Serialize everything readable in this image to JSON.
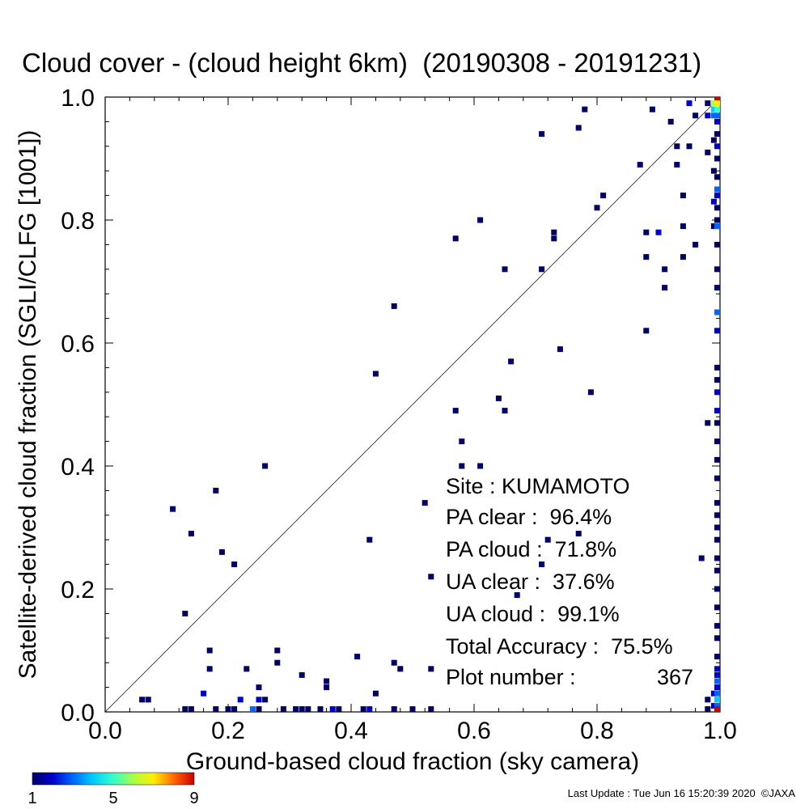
{
  "chart_data": {
    "type": "heatmap",
    "title": "Cloud cover - (cloud height 6km)  (20190308 - 20191231)",
    "xlabel": "Ground-based cloud fraction (sky camera)",
    "ylabel": "Satellite-derived cloud fraction (SGLI/CLFG [1001])",
    "xlim": [
      0.0,
      1.0
    ],
    "ylim": [
      0.0,
      1.0
    ],
    "x_ticks": [
      "0.0",
      "0.2",
      "0.4",
      "0.6",
      "0.8",
      "1.0"
    ],
    "y_ticks": [
      "0.0",
      "0.2",
      "0.4",
      "0.6",
      "0.8",
      "1.0"
    ],
    "reference_line": "y = x",
    "colorbar": {
      "min": 1,
      "max": 9,
      "tick_labels": [
        "1",
        "5",
        "9"
      ],
      "colors": [
        "#000066",
        "#0000cc",
        "#0066ff",
        "#00ccff",
        "#33ffcc",
        "#aaff44",
        "#ffee00",
        "#ff6600",
        "#cc0000"
      ]
    },
    "stats": {
      "site": "Site : KUMAMOTO",
      "pa_clear": "PA clear :  96.4%",
      "pa_cloud": "PA cloud :  71.8%",
      "ua_clear": "UA clear :  37.6%",
      "ua_cloud": "UA cloud :  99.1%",
      "total_accuracy": "Total Accuracy :  75.5%",
      "plot_number_label": "Plot number :",
      "plot_number_value": "367"
    },
    "points": [
      {
        "x": 0.06,
        "y": 0.02,
        "c": 1
      },
      {
        "x": 0.07,
        "y": 0.02,
        "c": 1
      },
      {
        "x": 0.13,
        "y": 0.0,
        "c": 1
      },
      {
        "x": 0.14,
        "y": 0.0,
        "c": 1
      },
      {
        "x": 0.16,
        "y": 0.03,
        "c": 2
      },
      {
        "x": 0.18,
        "y": 0.0,
        "c": 1
      },
      {
        "x": 0.2,
        "y": 0.0,
        "c": 1
      },
      {
        "x": 0.21,
        "y": 0.0,
        "c": 1
      },
      {
        "x": 0.22,
        "y": 0.02,
        "c": 2
      },
      {
        "x": 0.24,
        "y": 0.0,
        "c": 3
      },
      {
        "x": 0.25,
        "y": 0.0,
        "c": 1
      },
      {
        "x": 0.25,
        "y": 0.02,
        "c": 2
      },
      {
        "x": 0.26,
        "y": 0.02,
        "c": 1
      },
      {
        "x": 0.29,
        "y": 0.0,
        "c": 1
      },
      {
        "x": 0.31,
        "y": 0.0,
        "c": 1
      },
      {
        "x": 0.32,
        "y": 0.0,
        "c": 1
      },
      {
        "x": 0.33,
        "y": 0.0,
        "c": 1
      },
      {
        "x": 0.35,
        "y": 0.0,
        "c": 1
      },
      {
        "x": 0.37,
        "y": 0.0,
        "c": 2
      },
      {
        "x": 0.38,
        "y": 0.0,
        "c": 1
      },
      {
        "x": 0.42,
        "y": 0.0,
        "c": 1
      },
      {
        "x": 0.43,
        "y": 0.0,
        "c": 2
      },
      {
        "x": 0.47,
        "y": 0.0,
        "c": 1
      },
      {
        "x": 0.5,
        "y": 0.0,
        "c": 1
      },
      {
        "x": 0.53,
        "y": 0.0,
        "c": 1
      },
      {
        "x": 0.11,
        "y": 0.33,
        "c": 1
      },
      {
        "x": 0.14,
        "y": 0.29,
        "c": 1
      },
      {
        "x": 0.18,
        "y": 0.36,
        "c": 1
      },
      {
        "x": 0.19,
        "y": 0.26,
        "c": 1
      },
      {
        "x": 0.21,
        "y": 0.24,
        "c": 1
      },
      {
        "x": 0.13,
        "y": 0.16,
        "c": 1
      },
      {
        "x": 0.17,
        "y": 0.1,
        "c": 1
      },
      {
        "x": 0.17,
        "y": 0.07,
        "c": 1
      },
      {
        "x": 0.23,
        "y": 0.07,
        "c": 1
      },
      {
        "x": 0.25,
        "y": 0.04,
        "c": 1
      },
      {
        "x": 0.28,
        "y": 0.1,
        "c": 1
      },
      {
        "x": 0.28,
        "y": 0.08,
        "c": 1
      },
      {
        "x": 0.26,
        "y": 0.4,
        "c": 1
      },
      {
        "x": 0.32,
        "y": 0.06,
        "c": 1
      },
      {
        "x": 0.36,
        "y": 0.05,
        "c": 1
      },
      {
        "x": 0.36,
        "y": 0.04,
        "c": 1
      },
      {
        "x": 0.41,
        "y": 0.09,
        "c": 1
      },
      {
        "x": 0.43,
        "y": 0.28,
        "c": 1
      },
      {
        "x": 0.44,
        "y": 0.03,
        "c": 1
      },
      {
        "x": 0.44,
        "y": 0.55,
        "c": 1
      },
      {
        "x": 0.47,
        "y": 0.66,
        "c": 1
      },
      {
        "x": 0.47,
        "y": 0.08,
        "c": 1
      },
      {
        "x": 0.48,
        "y": 0.07,
        "c": 1
      },
      {
        "x": 0.52,
        "y": 0.34,
        "c": 1
      },
      {
        "x": 0.53,
        "y": 0.22,
        "c": 1
      },
      {
        "x": 0.53,
        "y": 0.07,
        "c": 1
      },
      {
        "x": 0.57,
        "y": 0.77,
        "c": 1
      },
      {
        "x": 0.57,
        "y": 0.49,
        "c": 1
      },
      {
        "x": 0.58,
        "y": 0.44,
        "c": 1
      },
      {
        "x": 0.58,
        "y": 0.4,
        "c": 1
      },
      {
        "x": 0.61,
        "y": 0.4,
        "c": 1
      },
      {
        "x": 0.61,
        "y": 0.8,
        "c": 1
      },
      {
        "x": 0.64,
        "y": 0.51,
        "c": 1
      },
      {
        "x": 0.65,
        "y": 0.49,
        "c": 1
      },
      {
        "x": 0.65,
        "y": 0.72,
        "c": 1
      },
      {
        "x": 0.66,
        "y": 0.57,
        "c": 1
      },
      {
        "x": 0.67,
        "y": 0.19,
        "c": 1
      },
      {
        "x": 0.71,
        "y": 0.94,
        "c": 1
      },
      {
        "x": 0.71,
        "y": 0.72,
        "c": 1
      },
      {
        "x": 0.71,
        "y": 0.24,
        "c": 1
      },
      {
        "x": 0.72,
        "y": 0.28,
        "c": 1
      },
      {
        "x": 0.73,
        "y": 0.78,
        "c": 1
      },
      {
        "x": 0.73,
        "y": 0.77,
        "c": 1
      },
      {
        "x": 0.74,
        "y": 0.59,
        "c": 1
      },
      {
        "x": 0.77,
        "y": 0.95,
        "c": 1
      },
      {
        "x": 0.77,
        "y": 0.29,
        "c": 1
      },
      {
        "x": 0.78,
        "y": 0.98,
        "c": 1
      },
      {
        "x": 0.79,
        "y": 0.52,
        "c": 1
      },
      {
        "x": 0.8,
        "y": 0.82,
        "c": 1
      },
      {
        "x": 0.81,
        "y": 0.84,
        "c": 1
      },
      {
        "x": 0.87,
        "y": 0.89,
        "c": 1
      },
      {
        "x": 0.88,
        "y": 0.78,
        "c": 1
      },
      {
        "x": 0.88,
        "y": 0.74,
        "c": 1
      },
      {
        "x": 0.88,
        "y": 0.62,
        "c": 1
      },
      {
        "x": 0.89,
        "y": 0.98,
        "c": 1
      },
      {
        "x": 0.9,
        "y": 0.78,
        "c": 2
      },
      {
        "x": 0.91,
        "y": 0.72,
        "c": 1
      },
      {
        "x": 0.91,
        "y": 0.69,
        "c": 1
      },
      {
        "x": 0.92,
        "y": 0.96,
        "c": 1
      },
      {
        "x": 0.93,
        "y": 0.92,
        "c": 1
      },
      {
        "x": 0.93,
        "y": 0.89,
        "c": 1
      },
      {
        "x": 0.94,
        "y": 0.84,
        "c": 1
      },
      {
        "x": 0.94,
        "y": 0.79,
        "c": 1
      },
      {
        "x": 0.94,
        "y": 0.74,
        "c": 1
      },
      {
        "x": 0.95,
        "y": 0.92,
        "c": 1
      },
      {
        "x": 0.95,
        "y": 0.99,
        "c": 2
      },
      {
        "x": 0.96,
        "y": 0.76,
        "c": 1
      },
      {
        "x": 0.96,
        "y": 0.97,
        "c": 1
      },
      {
        "x": 0.97,
        "y": 0.25,
        "c": 1
      },
      {
        "x": 0.98,
        "y": 0.47,
        "c": 1
      },
      {
        "x": 0.98,
        "y": 0.99,
        "c": 1
      },
      {
        "x": 0.98,
        "y": 0.97,
        "c": 2
      },
      {
        "x": 0.98,
        "y": 0.91,
        "c": 1
      },
      {
        "x": 0.98,
        "y": 0.0,
        "c": 1
      },
      {
        "x": 0.98,
        "y": 0.02,
        "c": 1
      },
      {
        "x": 0.99,
        "y": 0.99,
        "c": 6
      },
      {
        "x": 0.99,
        "y": 0.98,
        "c": 4
      },
      {
        "x": 0.99,
        "y": 0.97,
        "c": 3
      },
      {
        "x": 0.99,
        "y": 0.93,
        "c": 1
      },
      {
        "x": 0.99,
        "y": 0.88,
        "c": 1
      },
      {
        "x": 0.99,
        "y": 0.83,
        "c": 2
      },
      {
        "x": 0.99,
        "y": 0.79,
        "c": 1
      },
      {
        "x": 0.99,
        "y": 0.03,
        "c": 2
      },
      {
        "x": 0.99,
        "y": 0.01,
        "c": 2
      },
      {
        "x": 1.0,
        "y": 1.0,
        "c": 9
      },
      {
        "x": 1.0,
        "y": 0.99,
        "c": 7
      },
      {
        "x": 1.0,
        "y": 0.98,
        "c": 5
      },
      {
        "x": 1.0,
        "y": 0.97,
        "c": 3
      },
      {
        "x": 1.0,
        "y": 0.96,
        "c": 2
      },
      {
        "x": 1.0,
        "y": 0.94,
        "c": 1
      },
      {
        "x": 1.0,
        "y": 0.92,
        "c": 2
      },
      {
        "x": 1.0,
        "y": 0.9,
        "c": 1
      },
      {
        "x": 1.0,
        "y": 0.87,
        "c": 1
      },
      {
        "x": 1.0,
        "y": 0.85,
        "c": 3
      },
      {
        "x": 1.0,
        "y": 0.84,
        "c": 2
      },
      {
        "x": 1.0,
        "y": 0.82,
        "c": 1
      },
      {
        "x": 1.0,
        "y": 0.8,
        "c": 1
      },
      {
        "x": 1.0,
        "y": 0.79,
        "c": 3
      },
      {
        "x": 1.0,
        "y": 0.76,
        "c": 1
      },
      {
        "x": 1.0,
        "y": 0.72,
        "c": 1
      },
      {
        "x": 1.0,
        "y": 0.69,
        "c": 1
      },
      {
        "x": 1.0,
        "y": 0.65,
        "c": 3
      },
      {
        "x": 1.0,
        "y": 0.62,
        "c": 2
      },
      {
        "x": 1.0,
        "y": 0.56,
        "c": 1
      },
      {
        "x": 1.0,
        "y": 0.54,
        "c": 1
      },
      {
        "x": 1.0,
        "y": 0.52,
        "c": 2
      },
      {
        "x": 1.0,
        "y": 0.49,
        "c": 2
      },
      {
        "x": 1.0,
        "y": 0.47,
        "c": 1
      },
      {
        "x": 1.0,
        "y": 0.44,
        "c": 1
      },
      {
        "x": 1.0,
        "y": 0.41,
        "c": 1
      },
      {
        "x": 1.0,
        "y": 0.38,
        "c": 1
      },
      {
        "x": 1.0,
        "y": 0.34,
        "c": 1
      },
      {
        "x": 1.0,
        "y": 0.32,
        "c": 1
      },
      {
        "x": 1.0,
        "y": 0.3,
        "c": 1
      },
      {
        "x": 1.0,
        "y": 0.28,
        "c": 1
      },
      {
        "x": 1.0,
        "y": 0.25,
        "c": 1
      },
      {
        "x": 1.0,
        "y": 0.23,
        "c": 1
      },
      {
        "x": 1.0,
        "y": 0.2,
        "c": 1
      },
      {
        "x": 1.0,
        "y": 0.17,
        "c": 1
      },
      {
        "x": 1.0,
        "y": 0.14,
        "c": 1
      },
      {
        "x": 1.0,
        "y": 0.12,
        "c": 1
      },
      {
        "x": 1.0,
        "y": 0.09,
        "c": 1
      },
      {
        "x": 1.0,
        "y": 0.07,
        "c": 2
      },
      {
        "x": 1.0,
        "y": 0.06,
        "c": 2
      },
      {
        "x": 1.0,
        "y": 0.05,
        "c": 3
      },
      {
        "x": 1.0,
        "y": 0.04,
        "c": 2
      },
      {
        "x": 1.0,
        "y": 0.03,
        "c": 3
      },
      {
        "x": 1.0,
        "y": 0.02,
        "c": 4
      },
      {
        "x": 1.0,
        "y": 0.01,
        "c": 3
      },
      {
        "x": 1.0,
        "y": 0.0,
        "c": 9
      }
    ]
  },
  "footer": {
    "last_update": "Last Update : Tue Jun 16 15:20:39 2020  ©JAXA"
  }
}
